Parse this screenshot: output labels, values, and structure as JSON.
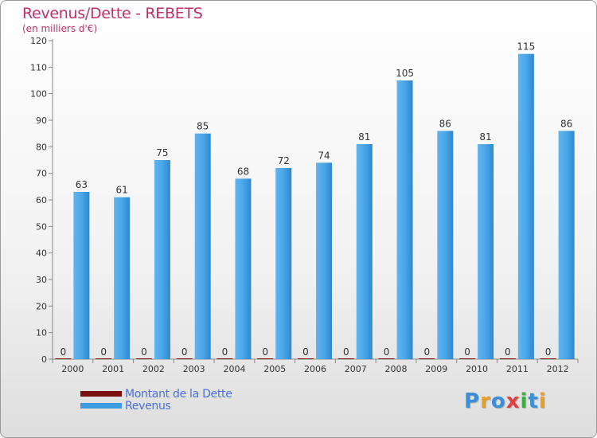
{
  "chart_data": {
    "type": "bar",
    "title": "Revenus/Dette - REBETS",
    "subtitle": "(en milliers d'€)",
    "categories": [
      "2000",
      "2001",
      "2002",
      "2003",
      "2004",
      "2005",
      "2006",
      "2007",
      "2008",
      "2009",
      "2010",
      "2011",
      "2012"
    ],
    "series": [
      {
        "name": "Montant de la Dette",
        "color": "#7a1010",
        "values": [
          0,
          0,
          0,
          0,
          0,
          0,
          0,
          0,
          0,
          0,
          0,
          0,
          0
        ]
      },
      {
        "name": "Revenus",
        "color": "#3d9be0",
        "values": [
          63,
          61,
          75,
          85,
          68,
          72,
          74,
          81,
          105,
          86,
          81,
          115,
          86
        ]
      }
    ],
    "ylim": [
      0,
      120
    ],
    "yticks": [
      0,
      10,
      20,
      30,
      40,
      50,
      60,
      70,
      80,
      90,
      100,
      110,
      120
    ],
    "grid": false,
    "legend": "bottom-left"
  },
  "logo": {
    "text": "Proxiti",
    "letters": [
      {
        "ch": "P",
        "color": "#3a8fd8"
      },
      {
        "ch": "r",
        "color": "#e8a020"
      },
      {
        "ch": "o",
        "color": "#3a8fd8"
      },
      {
        "ch": "x",
        "color": "#e04040"
      },
      {
        "ch": "i",
        "color": "#3ab040"
      },
      {
        "ch": "t",
        "color": "#3a8fd8"
      },
      {
        "ch": "i",
        "color": "#e8a020"
      }
    ]
  }
}
